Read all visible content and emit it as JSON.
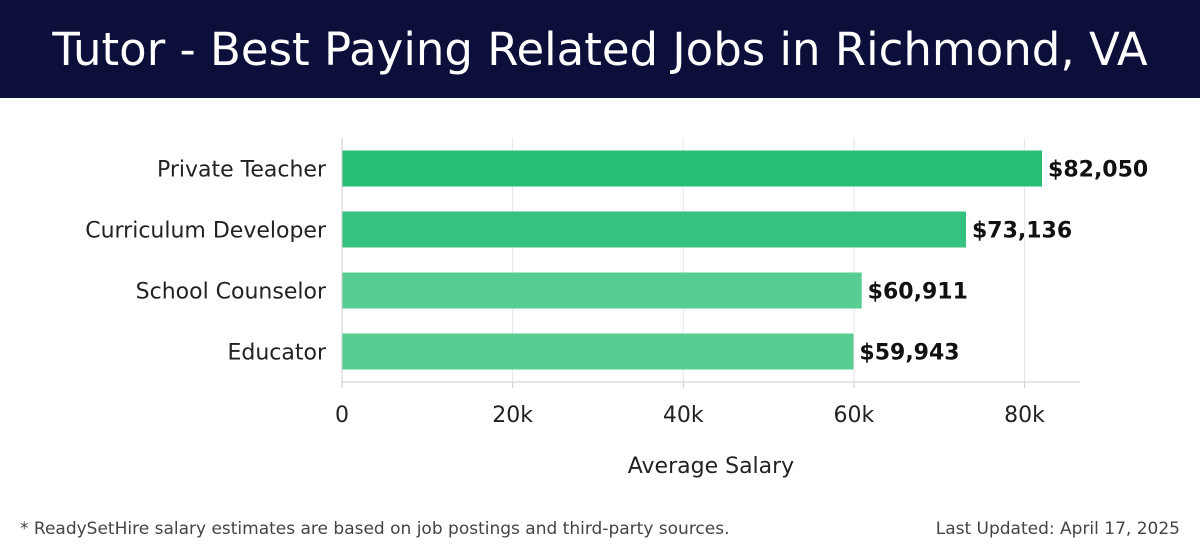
{
  "header": {
    "title": "Tutor - Best Paying Related Jobs in Richmond, VA",
    "background_color": "#0c0f3a"
  },
  "chart_data": {
    "type": "bar",
    "orientation": "horizontal",
    "categories": [
      "Private Teacher",
      "Curriculum Developer",
      "School Counselor",
      "Educator"
    ],
    "values": [
      82050,
      73136,
      60911,
      59943
    ],
    "value_labels": [
      "$82,050",
      "$73,136",
      "$60,911",
      "$59,943"
    ],
    "bar_colors": [
      "#27bd74",
      "#34c27e",
      "#57cd93",
      "#57cd93"
    ],
    "xlabel": "Average Salary",
    "ylabel": "",
    "xlim": [
      0,
      86500
    ],
    "xticks": [
      0,
      20000,
      40000,
      60000,
      80000
    ],
    "xtick_labels": [
      "0",
      "20k",
      "40k",
      "60k",
      "80k"
    ],
    "grid": "vertical",
    "legend": "none"
  },
  "footer": {
    "note": "* ReadySetHire salary estimates are based on job postings and third-party sources.",
    "last_updated": "Last Updated: April 17, 2025"
  }
}
